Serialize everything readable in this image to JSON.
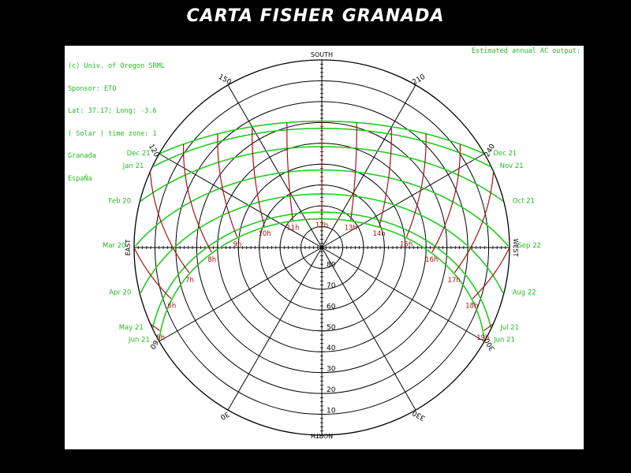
{
  "page_title": "CARTA FISHER GRANADA",
  "info": {
    "lines": [
      "(c) Univ. of Oregon SRML",
      "Sponsor: ETO",
      "Lat: 37.17; Long: -3.6",
      "( Solar ) time zone: 1",
      "Granada",
      "EspaÑa"
    ],
    "output_label": "Estimated annual AC output:"
  },
  "colors": {
    "background": "#000000",
    "panel": "#ffffff",
    "grid": "#000000",
    "date_lines": "#22cc22",
    "hour_lines": "#aa1111",
    "text_green": "#22bb22",
    "text_red": "#aa1111"
  },
  "chart_data": {
    "type": "polar sun path diagram",
    "latitude": 37.17,
    "longitude": -3.6,
    "cardinals": {
      "south": "SOUTH",
      "north": "NORTH",
      "east": "EAST",
      "west": "WEST"
    },
    "azimuth_labels": [
      {
        "azimuth": 30,
        "label": "30"
      },
      {
        "azimuth": 60,
        "label": "60"
      },
      {
        "azimuth": 120,
        "label": "120"
      },
      {
        "azimuth": 150,
        "label": "150"
      },
      {
        "azimuth": 210,
        "label": "210"
      },
      {
        "azimuth": 240,
        "label": "240"
      },
      {
        "azimuth": 300,
        "label": "300"
      },
      {
        "azimuth": 330,
        "label": "330"
      }
    ],
    "elevation_rings": [
      10,
      20,
      30,
      40,
      50,
      60,
      70,
      80
    ],
    "elevation_labels": [
      "10",
      "20",
      "30",
      "40",
      "50",
      "60",
      "70",
      "80"
    ],
    "date_lines": [
      {
        "label_left": "Jun 21",
        "label_right": "Jun 21",
        "declination": 23.44
      },
      {
        "label_left": "May 21",
        "label_right": "Jul 21",
        "declination": 20.2
      },
      {
        "label_left": "Apr 20",
        "label_right": "Aug 22",
        "declination": 11.5
      },
      {
        "label_left": "Mar 20",
        "label_right": "Sep 22",
        "declination": 0.0
      },
      {
        "label_left": "Feb 20",
        "label_right": "Oct 21",
        "declination": -11.2
      },
      {
        "label_left": "Jan 21",
        "label_right": "Nov 21",
        "declination": -20.0
      },
      {
        "label_left": "Dec 21",
        "label_right": "Dec 21",
        "declination": -23.44
      }
    ],
    "hour_lines": [
      {
        "hour": 5,
        "label": "5h"
      },
      {
        "hour": 6,
        "label": "6h"
      },
      {
        "hour": 7,
        "label": "7h"
      },
      {
        "hour": 8,
        "label": "8h"
      },
      {
        "hour": 9,
        "label": "9h"
      },
      {
        "hour": 10,
        "label": "10h"
      },
      {
        "hour": 11,
        "label": "11h"
      },
      {
        "hour": 12,
        "label": "12h"
      },
      {
        "hour": 13,
        "label": "13h"
      },
      {
        "hour": 14,
        "label": "14h"
      },
      {
        "hour": 15,
        "label": "15h"
      },
      {
        "hour": 16,
        "label": "16h"
      },
      {
        "hour": 17,
        "label": "17h"
      },
      {
        "hour": 18,
        "label": "18h"
      },
      {
        "hour": 19,
        "label": "19h"
      }
    ]
  }
}
